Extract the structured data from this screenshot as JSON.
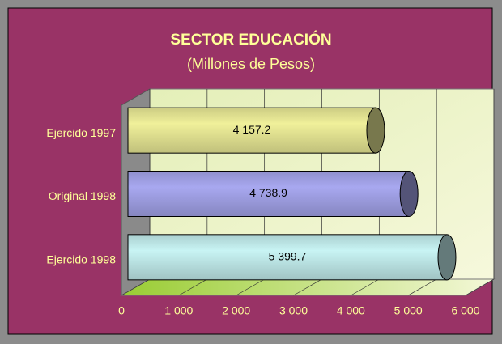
{
  "chart_data": {
    "type": "bar",
    "orientation": "horizontal",
    "title": "SECTOR EDUCACIÓN",
    "subtitle": "(Millones de Pesos)",
    "categories": [
      "Ejercido 1997",
      "Original 1998",
      "Ejercido 1998"
    ],
    "values": [
      4157.2,
      4738.9,
      5399.7
    ],
    "value_labels": [
      "4 157.2",
      "4 738.9",
      "5 399.7"
    ],
    "colors": [
      "#f0f09a",
      "#a8a8f0",
      "#c8f4f4"
    ],
    "xlim": [
      0,
      6000
    ],
    "xticks": [
      0,
      {
        "value": 1000,
        "label": "1 000"
      },
      {
        "value": 2000,
        "label": "2 000"
      },
      {
        "value": 3000,
        "label": "3 000"
      },
      {
        "value": 4000,
        "label": "4 000"
      },
      {
        "value": 5000,
        "label": "5 000"
      },
      {
        "value": 6000,
        "label": "6 000"
      }
    ],
    "grid": true
  }
}
